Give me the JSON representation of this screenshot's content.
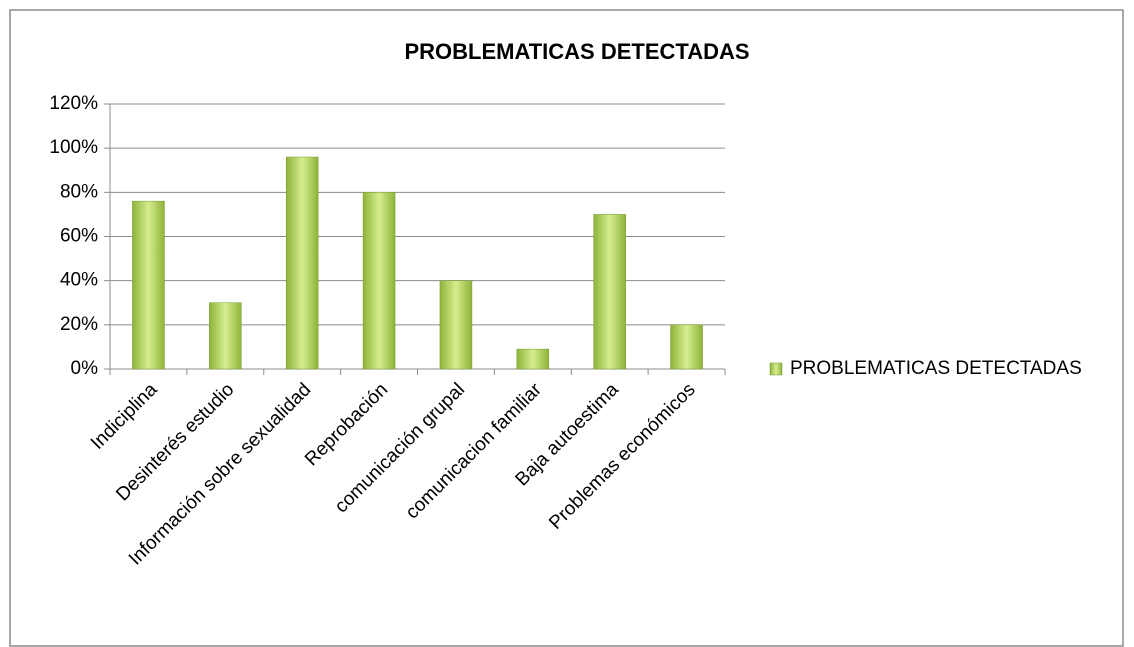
{
  "chart_data": {
    "type": "bar",
    "title": "PROBLEMATICAS DETECTADAS",
    "categories": [
      "Indiciplina",
      "Desinterés estudio",
      "Información sobre sexualidad",
      "Reprobación",
      "comunicación grupal",
      "comunicacion familiar",
      "Baja autoestima",
      "Problemas económicos"
    ],
    "series": [
      {
        "name": "PROBLEMATICAS DETECTADAS",
        "color": "#8db33a",
        "values": [
          76,
          30,
          96,
          80,
          40,
          9,
          70,
          20
        ]
      }
    ],
    "ylim": [
      0,
      120
    ],
    "yticks": [
      {
        "value": 0,
        "label": "0%"
      },
      {
        "value": 20,
        "label": "20%"
      },
      {
        "value": 40,
        "label": "40%"
      },
      {
        "value": 60,
        "label": "60%"
      },
      {
        "value": 80,
        "label": "80%"
      },
      {
        "value": 100,
        "label": "100%"
      },
      {
        "value": 120,
        "label": "120%"
      }
    ],
    "grid": true,
    "legend": "right"
  }
}
